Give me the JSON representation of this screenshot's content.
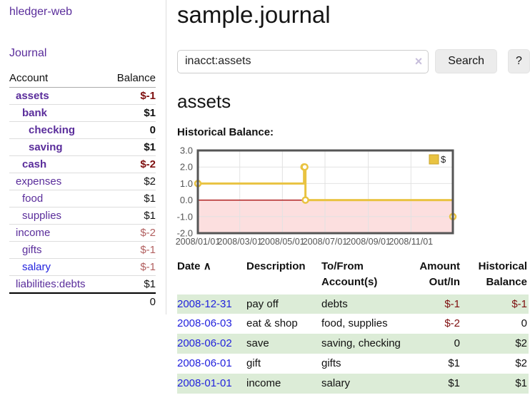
{
  "app": {
    "brand": "hledger-web",
    "nav_journal": "Journal"
  },
  "sidebar": {
    "col_account": "Account",
    "col_balance": "Balance",
    "accounts": [
      {
        "name": "assets",
        "depth": 0,
        "bold": true,
        "balance": "$-1",
        "balance_style": "neg-strong",
        "link_color": "purple"
      },
      {
        "name": "bank",
        "depth": 1,
        "bold": true,
        "balance": "$1",
        "balance_style": "pos",
        "link_color": "purple"
      },
      {
        "name": "checking",
        "depth": 2,
        "bold": true,
        "balance": "0",
        "balance_style": "pos",
        "link_color": "purple"
      },
      {
        "name": "saving",
        "depth": 2,
        "bold": true,
        "balance": "$1",
        "balance_style": "pos",
        "link_color": "purple"
      },
      {
        "name": "cash",
        "depth": 1,
        "bold": true,
        "balance": "$-2",
        "balance_style": "neg-strong",
        "link_color": "purple"
      },
      {
        "name": "expenses",
        "depth": 0,
        "bold": false,
        "balance": "$2",
        "balance_style": "pos",
        "link_color": "purple"
      },
      {
        "name": "food",
        "depth": 1,
        "bold": false,
        "balance": "$1",
        "balance_style": "pos",
        "link_color": "purple"
      },
      {
        "name": "supplies",
        "depth": 1,
        "bold": false,
        "balance": "$1",
        "balance_style": "pos",
        "link_color": "purple"
      },
      {
        "name": "income",
        "depth": 0,
        "bold": false,
        "balance": "$-2",
        "balance_style": "neg-weak",
        "link_color": "purple"
      },
      {
        "name": "gifts",
        "depth": 1,
        "bold": false,
        "balance": "$-1",
        "balance_style": "neg-weak",
        "link_color": "purple"
      },
      {
        "name": "salary",
        "depth": 1,
        "bold": false,
        "balance": "$-1",
        "balance_style": "neg-weak",
        "link_color": "blue"
      },
      {
        "name": "liabilities:debts",
        "depth": 0,
        "bold": false,
        "balance": "$1",
        "balance_style": "pos",
        "link_color": "purple"
      }
    ],
    "total": "0"
  },
  "main": {
    "title": "sample.journal",
    "search": {
      "value": "inacct:assets",
      "clear_icon": "×",
      "button_label": "Search",
      "help_label": "?"
    },
    "account_heading": "assets",
    "chart_heading": "Historical Balance:"
  },
  "chart_data": {
    "type": "line",
    "title": "Historical Balance:",
    "series": [
      {
        "name": "$",
        "color": "#e9c341",
        "step": true,
        "points": [
          [
            "2008-01-01",
            1
          ],
          [
            "2008-06-01",
            2
          ],
          [
            "2008-06-02",
            2
          ],
          [
            "2008-06-03",
            0
          ],
          [
            "2008-12-31",
            -1
          ]
        ]
      }
    ],
    "x_range": [
      "2008-01-01",
      "2008-12-31"
    ],
    "x_ticks": [
      "2008/01/01",
      "2008/03/01",
      "2008/05/01",
      "2008/07/01",
      "2008/09/01",
      "2008/11/01"
    ],
    "y_ticks": [
      3.0,
      2.0,
      1.0,
      0.0,
      -1.0,
      -2.0
    ],
    "ylim": [
      -2.0,
      3.0
    ],
    "grid": true,
    "legend_position": "top-right",
    "colors": {
      "negative_fill": "#fcdfdf",
      "zero_line": "#a40000",
      "grid_line": "#e2e2e2",
      "plot_border": "#555555",
      "axis_text": "#545454",
      "legend_swatch_border": "#c7a32e"
    }
  },
  "register": {
    "headers": {
      "date": "Date",
      "sort_icon": "∧",
      "description": "Description",
      "accounts": "To/From Account(s)",
      "amount": "Amount Out/In",
      "balance": "Historical Balance"
    },
    "rows": [
      {
        "date": "2008-12-31",
        "description": "pay off",
        "accounts": "debts",
        "amount": "$-1",
        "amount_neg": true,
        "balance": "$-1",
        "balance_neg": true
      },
      {
        "date": "2008-06-03",
        "description": "eat & shop",
        "accounts": "food, supplies",
        "amount": "$-2",
        "amount_neg": true,
        "balance": "0",
        "balance_neg": false
      },
      {
        "date": "2008-06-02",
        "description": "save",
        "accounts": "saving, checking",
        "amount": "0",
        "amount_neg": false,
        "balance": "$2",
        "balance_neg": false
      },
      {
        "date": "2008-06-01",
        "description": "gift",
        "accounts": "gifts",
        "amount": "$1",
        "amount_neg": false,
        "balance": "$2",
        "balance_neg": false
      },
      {
        "date": "2008-01-01",
        "description": "income",
        "accounts": "salary",
        "amount": "$1",
        "amount_neg": false,
        "balance": "$1",
        "balance_neg": false
      }
    ]
  }
}
